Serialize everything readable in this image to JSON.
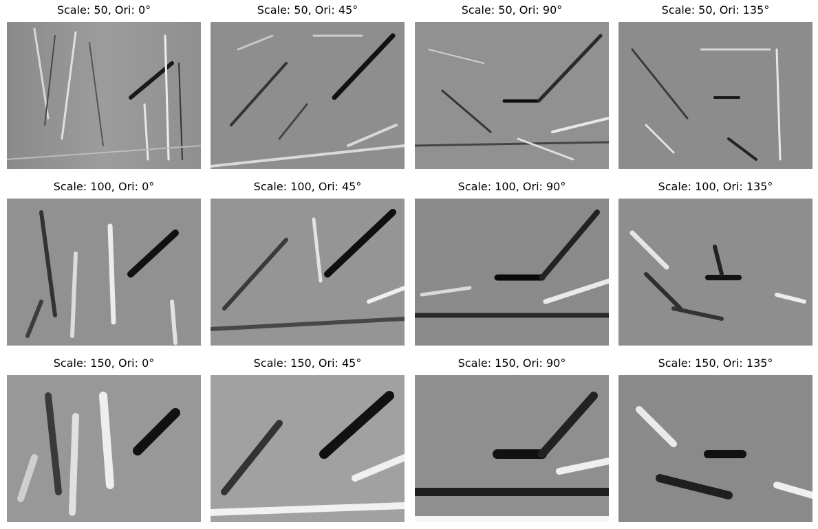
{
  "panels": [
    {
      "title": "Scale: 50, Ori: 0°",
      "scale": 50,
      "orientation_deg": 0
    },
    {
      "title": "Scale: 50, Ori: 45°",
      "scale": 50,
      "orientation_deg": 45
    },
    {
      "title": "Scale: 50, Ori: 90°",
      "scale": 50,
      "orientation_deg": 90
    },
    {
      "title": "Scale: 50, Ori: 135°",
      "scale": 50,
      "orientation_deg": 135
    },
    {
      "title": "Scale: 100, Ori: 0°",
      "scale": 100,
      "orientation_deg": 0
    },
    {
      "title": "Scale: 100, Ori: 45°",
      "scale": 100,
      "orientation_deg": 45
    },
    {
      "title": "Scale: 100, Ori: 90°",
      "scale": 100,
      "orientation_deg": 90
    },
    {
      "title": "Scale: 100, Ori: 135°",
      "scale": 100,
      "orientation_deg": 135
    },
    {
      "title": "Scale: 150, Ori: 0°",
      "scale": 150,
      "orientation_deg": 0
    },
    {
      "title": "Scale: 150, Ori: 45°",
      "scale": 150,
      "orientation_deg": 45
    },
    {
      "title": "Scale: 150, Ori: 90°",
      "scale": 150,
      "orientation_deg": 90
    },
    {
      "title": "Scale: 150, Ori: 135°",
      "scale": 150,
      "orientation_deg": 135
    }
  ]
}
